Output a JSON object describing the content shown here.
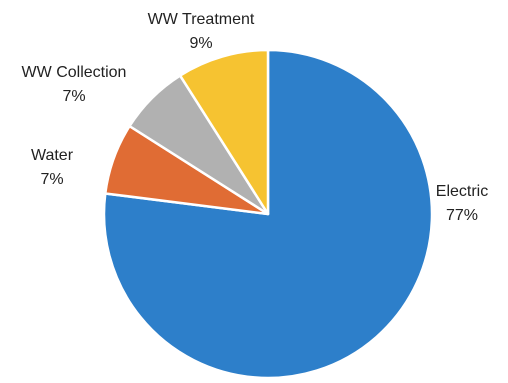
{
  "chart_data": {
    "type": "pie",
    "title": "",
    "slices": [
      {
        "label": "Electric",
        "value": 77,
        "value_label": "77%",
        "color": "#2d7fca"
      },
      {
        "label": "Water",
        "value": 7,
        "value_label": "7%",
        "color": "#e06c34"
      },
      {
        "label": "WW Collection",
        "value": 7,
        "value_label": "7%",
        "color": "#b1b1b1"
      },
      {
        "label": "WW Treatment",
        "value": 9,
        "value_label": "9%",
        "color": "#f6c331"
      }
    ],
    "legend": "none",
    "data_labels": "outside"
  }
}
